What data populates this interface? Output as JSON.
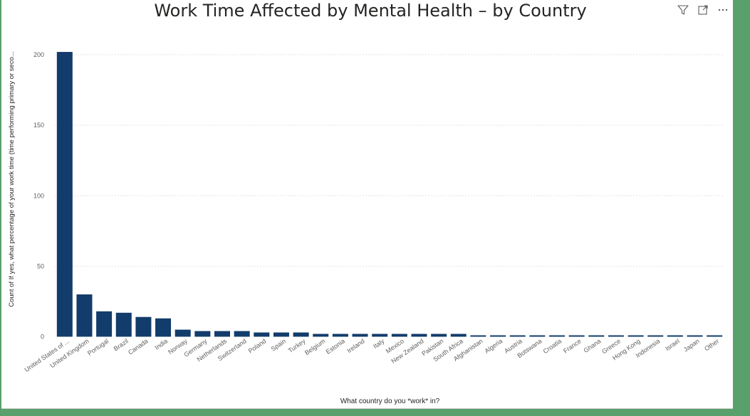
{
  "visual": {
    "title": "Work Time Affected by Mental Health – by Country",
    "icons": [
      "filter-icon",
      "focus-mode-icon",
      "more-options-icon"
    ]
  },
  "colors": {
    "bar": "#123c6b",
    "grid": "#e2e2e2",
    "tick_text": "#605e5c",
    "frame": "#5aa06c"
  },
  "chart_data": {
    "type": "bar",
    "title": "Work Time Affected by Mental Health – by Country",
    "xlabel": "What country do you *work* in?",
    "ylabel": "Count of If yes, what percentage of your work time (time performing primary or seco...",
    "ylim": [
      0,
      200
    ],
    "yticks": [
      0,
      50,
      100,
      150,
      200
    ],
    "grid": true,
    "categories": [
      "United States of ...",
      "United Kingdom",
      "Portugal",
      "Brazil",
      "Canada",
      "India",
      "Norway",
      "Germany",
      "Netherlands",
      "Switzerland",
      "Poland",
      "Spain",
      "Turkey",
      "Belgium",
      "Estonia",
      "Ireland",
      "Italy",
      "Mexico",
      "New Zealand",
      "Pakistan",
      "South Africa",
      "Afghanistan",
      "Algeria",
      "Austria",
      "Botswana",
      "Croatia",
      "France",
      "Ghana",
      "Greece",
      "Hong Kong",
      "Indonesia",
      "Israel",
      "Japan",
      "Other"
    ],
    "values": [
      202,
      30,
      18,
      17,
      14,
      13,
      5,
      4,
      4,
      4,
      3,
      3,
      3,
      2,
      2,
      2,
      2,
      2,
      2,
      2,
      2,
      1,
      1,
      1,
      1,
      1,
      1,
      1,
      1,
      1,
      1,
      1,
      1,
      1
    ]
  }
}
